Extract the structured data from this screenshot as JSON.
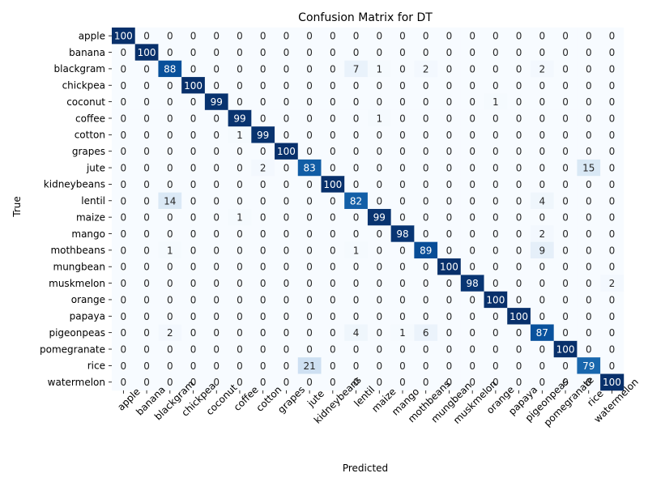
{
  "chart_data": {
    "type": "heatmap",
    "title": "Confusion Matrix for DT",
    "xlabel": "Predicted",
    "ylabel": "True",
    "labels": [
      "apple",
      "banana",
      "blackgram",
      "chickpea",
      "coconut",
      "coffee",
      "cotton",
      "grapes",
      "jute",
      "kidneybeans",
      "lentil",
      "maize",
      "mango",
      "mothbeans",
      "mungbean",
      "muskmelon",
      "orange",
      "papaya",
      "pigeonpeas",
      "pomegranate",
      "rice",
      "watermelon"
    ],
    "matrix": [
      [
        100,
        0,
        0,
        0,
        0,
        0,
        0,
        0,
        0,
        0,
        0,
        0,
        0,
        0,
        0,
        0,
        0,
        0,
        0,
        0,
        0,
        0
      ],
      [
        0,
        100,
        0,
        0,
        0,
        0,
        0,
        0,
        0,
        0,
        0,
        0,
        0,
        0,
        0,
        0,
        0,
        0,
        0,
        0,
        0,
        0
      ],
      [
        0,
        0,
        88,
        0,
        0,
        0,
        0,
        0,
        0,
        0,
        7,
        1,
        0,
        2,
        0,
        0,
        0,
        0,
        2,
        0,
        0,
        0
      ],
      [
        0,
        0,
        0,
        100,
        0,
        0,
        0,
        0,
        0,
        0,
        0,
        0,
        0,
        0,
        0,
        0,
        0,
        0,
        0,
        0,
        0,
        0
      ],
      [
        0,
        0,
        0,
        0,
        99,
        0,
        0,
        0,
        0,
        0,
        0,
        0,
        0,
        0,
        0,
        0,
        1,
        0,
        0,
        0,
        0,
        0
      ],
      [
        0,
        0,
        0,
        0,
        0,
        99,
        0,
        0,
        0,
        0,
        0,
        1,
        0,
        0,
        0,
        0,
        0,
        0,
        0,
        0,
        0,
        0
      ],
      [
        0,
        0,
        0,
        0,
        0,
        1,
        99,
        0,
        0,
        0,
        0,
        0,
        0,
        0,
        0,
        0,
        0,
        0,
        0,
        0,
        0,
        0
      ],
      [
        0,
        0,
        0,
        0,
        0,
        0,
        0,
        100,
        0,
        0,
        0,
        0,
        0,
        0,
        0,
        0,
        0,
        0,
        0,
        0,
        0,
        0
      ],
      [
        0,
        0,
        0,
        0,
        0,
        0,
        2,
        0,
        83,
        0,
        0,
        0,
        0,
        0,
        0,
        0,
        0,
        0,
        0,
        0,
        15,
        0
      ],
      [
        0,
        0,
        0,
        0,
        0,
        0,
        0,
        0,
        0,
        100,
        0,
        0,
        0,
        0,
        0,
        0,
        0,
        0,
        0,
        0,
        0,
        0
      ],
      [
        0,
        0,
        14,
        0,
        0,
        0,
        0,
        0,
        0,
        0,
        82,
        0,
        0,
        0,
        0,
        0,
        0,
        0,
        4,
        0,
        0,
        0
      ],
      [
        0,
        0,
        0,
        0,
        0,
        1,
        0,
        0,
        0,
        0,
        0,
        99,
        0,
        0,
        0,
        0,
        0,
        0,
        0,
        0,
        0,
        0
      ],
      [
        0,
        0,
        0,
        0,
        0,
        0,
        0,
        0,
        0,
        0,
        0,
        0,
        98,
        0,
        0,
        0,
        0,
        0,
        2,
        0,
        0,
        0
      ],
      [
        0,
        0,
        1,
        0,
        0,
        0,
        0,
        0,
        0,
        0,
        1,
        0,
        0,
        89,
        0,
        0,
        0,
        0,
        9,
        0,
        0,
        0
      ],
      [
        0,
        0,
        0,
        0,
        0,
        0,
        0,
        0,
        0,
        0,
        0,
        0,
        0,
        0,
        100,
        0,
        0,
        0,
        0,
        0,
        0,
        0
      ],
      [
        0,
        0,
        0,
        0,
        0,
        0,
        0,
        0,
        0,
        0,
        0,
        0,
        0,
        0,
        0,
        98,
        0,
        0,
        0,
        0,
        0,
        2
      ],
      [
        0,
        0,
        0,
        0,
        0,
        0,
        0,
        0,
        0,
        0,
        0,
        0,
        0,
        0,
        0,
        0,
        100,
        0,
        0,
        0,
        0,
        0
      ],
      [
        0,
        0,
        0,
        0,
        0,
        0,
        0,
        0,
        0,
        0,
        0,
        0,
        0,
        0,
        0,
        0,
        0,
        100,
        0,
        0,
        0,
        0
      ],
      [
        0,
        0,
        2,
        0,
        0,
        0,
        0,
        0,
        0,
        0,
        4,
        0,
        1,
        6,
        0,
        0,
        0,
        0,
        87,
        0,
        0,
        0
      ],
      [
        0,
        0,
        0,
        0,
        0,
        0,
        0,
        0,
        0,
        0,
        0,
        0,
        0,
        0,
        0,
        0,
        0,
        0,
        0,
        100,
        0,
        0
      ],
      [
        0,
        0,
        0,
        0,
        0,
        0,
        0,
        0,
        21,
        0,
        0,
        0,
        0,
        0,
        0,
        0,
        0,
        0,
        0,
        0,
        79,
        0
      ],
      [
        0,
        0,
        0,
        0,
        0,
        0,
        0,
        0,
        0,
        0,
        0,
        0,
        0,
        0,
        0,
        0,
        0,
        0,
        0,
        0,
        0,
        100
      ]
    ],
    "value_range": [
      0,
      100
    ],
    "colormap": "Blues",
    "colorbar": false,
    "grid": false
  }
}
